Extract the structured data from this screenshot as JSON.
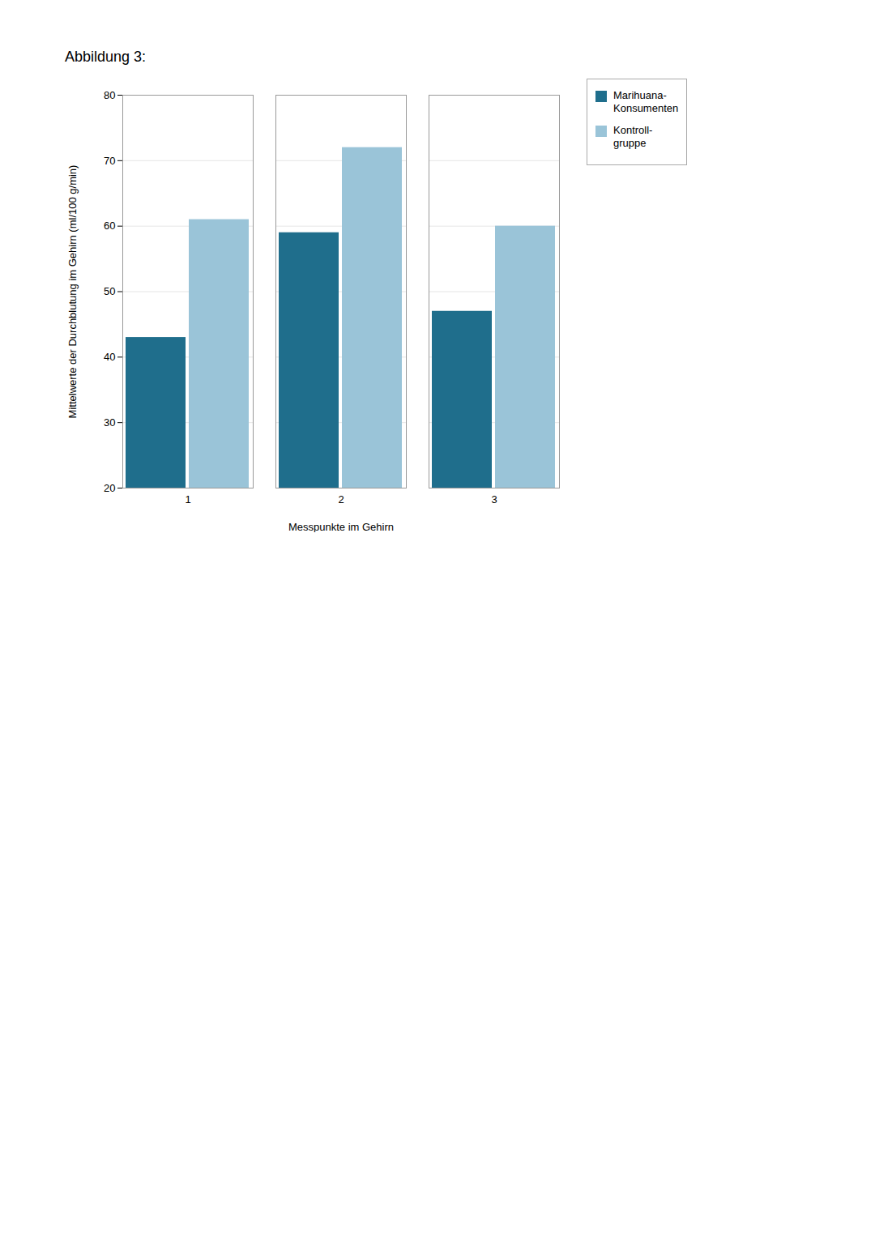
{
  "chart_data": {
    "type": "bar",
    "title": "Abbildung 3:",
    "categories": [
      1,
      2,
      3
    ],
    "series": [
      {
        "name": "Marihuana-\nKonsumenten",
        "color": "#1f6e8c",
        "values": [
          43,
          59,
          47
        ]
      },
      {
        "name": "Kontroll-\ngruppe",
        "color": "#9ac4d8",
        "values": [
          61,
          72,
          60
        ]
      }
    ],
    "xlabel": "Messpunkte im Gehirn",
    "ylabel": "Mittelwerte der Durchblutung im Gehirn (ml/100 g/min)",
    "ylim": [
      20,
      80
    ],
    "yticks": [
      20,
      30,
      40,
      50,
      60,
      70,
      80
    ],
    "grid": true,
    "legend": "upper right"
  }
}
